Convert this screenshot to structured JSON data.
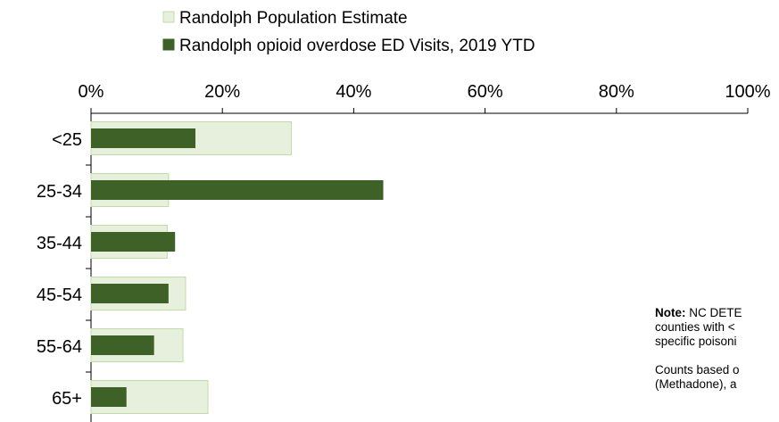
{
  "chart_data": {
    "type": "bar",
    "orientation": "horizontal",
    "categories": [
      "<25",
      "25-34",
      "35-44",
      "45-54",
      "55-64",
      "65+"
    ],
    "series": [
      {
        "name": "Randolph Population Estimate",
        "values": [
          30.5,
          11.8,
          11.6,
          14.4,
          14.0,
          17.8
        ],
        "color": "#e6f0dc",
        "stroke": "#c3dba8"
      },
      {
        "name": "Randolph opioid overdose ED Visits, 2019 YTD",
        "values": [
          15.9,
          44.5,
          12.8,
          11.8,
          9.6,
          5.4
        ],
        "color": "#3d6126"
      }
    ],
    "xlim": [
      0,
      100
    ],
    "xticks": [
      "0%",
      "20%",
      "40%",
      "60%",
      "80%",
      "100%"
    ],
    "legend_position": "top",
    "grid": false
  },
  "note": {
    "label": "Note:",
    "line1": " NC DETE",
    "line2": "counties with <",
    "line3": "specific poisoni",
    "line4": "Counts based o",
    "line5": "(Methadone), a"
  }
}
